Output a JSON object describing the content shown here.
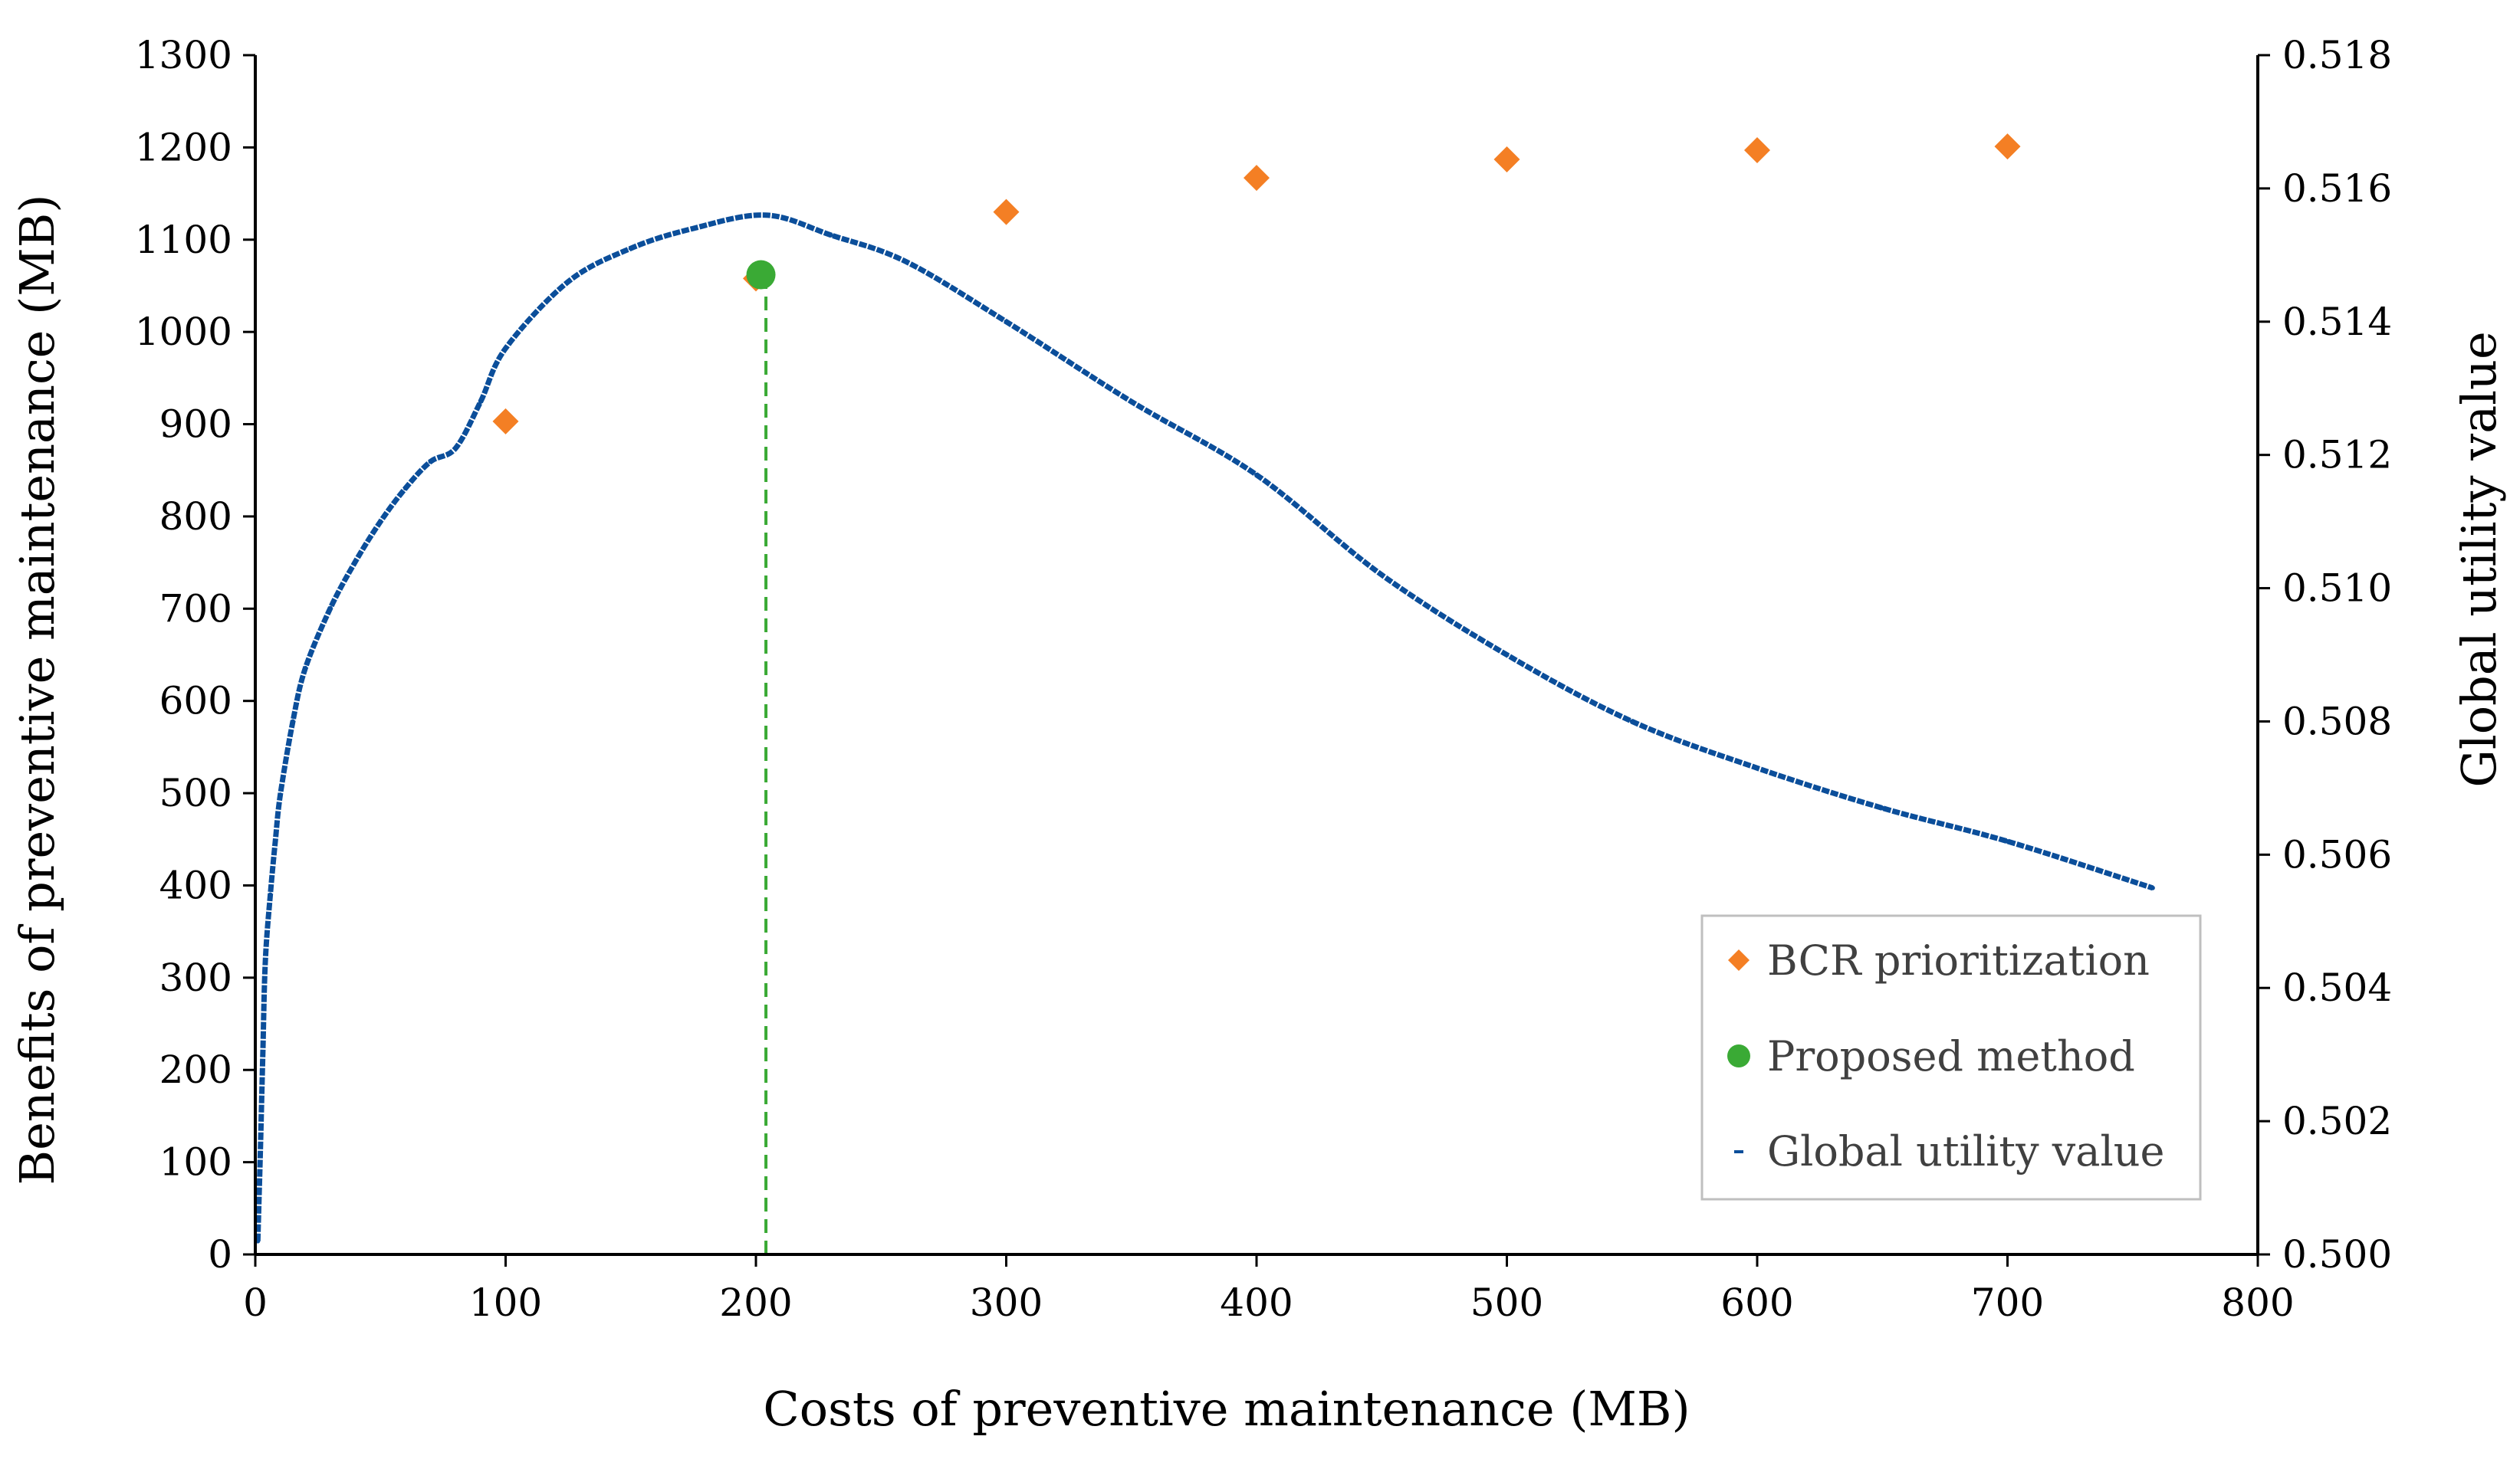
{
  "chart_data": {
    "type": "scatter",
    "xlabel": "Costs of preventive maintenance (MB)",
    "ylabel": "Benefits of preventive maintenance (MB)",
    "y2label": "Global utility value",
    "xlim": [
      0,
      800
    ],
    "ylim": [
      0,
      1300
    ],
    "y2lim": [
      0.5,
      0.518
    ],
    "x_ticks": [
      "0",
      "100",
      "200",
      "300",
      "400",
      "500",
      "600",
      "700",
      "800"
    ],
    "y_ticks": [
      "0",
      "100",
      "200",
      "300",
      "400",
      "500",
      "600",
      "700",
      "800",
      "900",
      "1000",
      "1100",
      "1200",
      "1300"
    ],
    "y2_ticks": [
      "0.500",
      "0.502",
      "0.504",
      "0.506",
      "0.508",
      "0.510",
      "0.512",
      "0.514",
      "0.516",
      "0.518"
    ],
    "grid": false,
    "legend_position": "bottom-right",
    "colors": {
      "bcr": "#F47F24",
      "proposed": "#3AAA35",
      "utility": "#0B4E9A",
      "dropline": "#3AAA35"
    },
    "series": [
      {
        "name": "BCR prioritization",
        "marker": "diamond",
        "axis": "left",
        "points": [
          [
            100,
            903
          ],
          [
            200,
            1058
          ],
          [
            300,
            1130
          ],
          [
            400,
            1167
          ],
          [
            500,
            1187
          ],
          [
            600,
            1197
          ],
          [
            700,
            1201
          ]
        ]
      },
      {
        "name": "Proposed method",
        "marker": "circle",
        "axis": "left",
        "points": [
          [
            202,
            1062
          ]
        ]
      },
      {
        "name": "Global utility value",
        "marker": "dash",
        "axis": "right",
        "points": [
          [
            1,
            0.5002
          ],
          [
            2,
            0.5015
          ],
          [
            3,
            0.503
          ],
          [
            4,
            0.5044
          ],
          [
            6,
            0.5054
          ],
          [
            8,
            0.5062
          ],
          [
            10,
            0.5069
          ],
          [
            15,
            0.508
          ],
          [
            20,
            0.5088
          ],
          [
            30,
            0.5097
          ],
          [
            40,
            0.5104
          ],
          [
            50,
            0.511
          ],
          [
            60,
            0.5115
          ],
          [
            70,
            0.5119
          ],
          [
            80,
            0.5121
          ],
          [
            90,
            0.5128
          ],
          [
            100,
            0.5136
          ],
          [
            125,
            0.5146
          ],
          [
            150,
            0.5151
          ],
          [
            175,
            0.5154
          ],
          [
            204,
            0.5156
          ],
          [
            230,
            0.5153
          ],
          [
            260,
            0.5149
          ],
          [
            300,
            0.514
          ],
          [
            350,
            0.5128
          ],
          [
            400,
            0.5117
          ],
          [
            450,
            0.5102
          ],
          [
            500,
            0.509
          ],
          [
            550,
            0.508
          ],
          [
            600,
            0.5073
          ],
          [
            650,
            0.5067
          ],
          [
            700,
            0.5062
          ],
          [
            758,
            0.5055
          ]
        ]
      }
    ],
    "annotations": [
      {
        "type": "dashed-vertical-line",
        "x": 204,
        "y_from": 0,
        "y_to": 1062
      }
    ]
  }
}
